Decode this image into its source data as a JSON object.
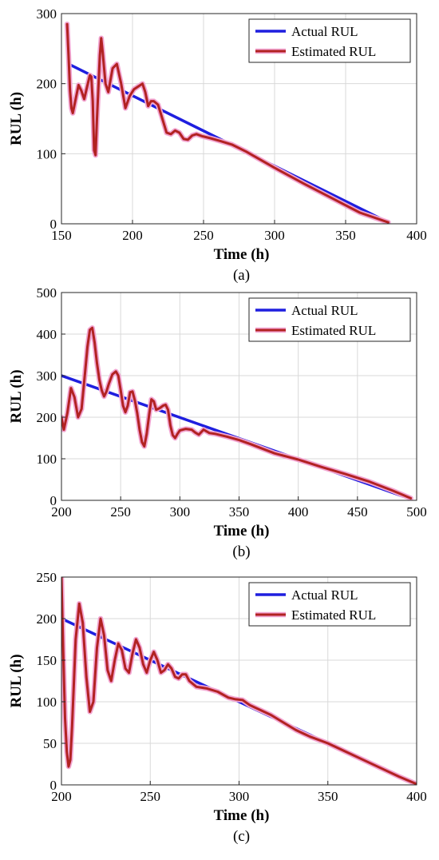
{
  "chart_data": [
    {
      "type": "line",
      "panel_label": "(a)",
      "xlabel": "Time (h)",
      "ylabel": "RUL (h)",
      "xlim": [
        150,
        400
      ],
      "ylim": [
        0,
        300
      ],
      "xticks": [
        150,
        200,
        250,
        300,
        350,
        400
      ],
      "yticks": [
        0,
        100,
        200,
        300
      ],
      "grid": true,
      "legend_position": "top-right",
      "series": [
        {
          "name": "Actual RUL",
          "color": "#1f1fdf",
          "x": [
            155,
            380
          ],
          "y": [
            228,
            2
          ]
        },
        {
          "name": "Estimated RUL",
          "color": "#b22222",
          "x": [
            154,
            155,
            156,
            157,
            158,
            160,
            162,
            164,
            166,
            168,
            170,
            171,
            172,
            173,
            174,
            175,
            177,
            178,
            179,
            181,
            183,
            186,
            189,
            192,
            195,
            198,
            201,
            204,
            207,
            209,
            211,
            213,
            215,
            218,
            221,
            224,
            227,
            230,
            233,
            236,
            239,
            242,
            245,
            249,
            255,
            262,
            270,
            280,
            300,
            320,
            340,
            360,
            380
          ],
          "y": [
            285,
            240,
            190,
            165,
            158,
            178,
            198,
            190,
            178,
            195,
            212,
            210,
            175,
            105,
            98,
            150,
            240,
            265,
            245,
            200,
            188,
            222,
            228,
            200,
            165,
            182,
            192,
            196,
            200,
            188,
            168,
            175,
            175,
            170,
            150,
            130,
            128,
            133,
            130,
            121,
            120,
            126,
            128,
            125,
            122,
            118,
            113,
            103,
            80,
            58,
            37,
            16,
            2
          ]
        }
      ]
    },
    {
      "type": "line",
      "panel_label": "(b)",
      "xlabel": "Time (h)",
      "ylabel": "RUL (h)",
      "xlim": [
        200,
        500
      ],
      "ylim": [
        0,
        500
      ],
      "xticks": [
        200,
        250,
        300,
        350,
        400,
        450,
        500
      ],
      "yticks": [
        0,
        100,
        200,
        300,
        400,
        500
      ],
      "grid": true,
      "legend_position": "top-right",
      "series": [
        {
          "name": "Actual RUL",
          "color": "#1f1fdf",
          "x": [
            200,
            495
          ],
          "y": [
            300,
            3
          ]
        },
        {
          "name": "Estimated RUL",
          "color": "#b22222",
          "x": [
            200,
            202,
            205,
            208,
            211,
            214,
            217,
            220,
            222,
            224,
            226,
            228,
            230,
            232,
            234,
            236,
            238,
            240,
            243,
            246,
            248,
            250,
            252,
            254,
            256,
            258,
            260,
            262,
            264,
            266,
            268,
            270,
            272,
            274,
            276,
            278,
            280,
            283,
            286,
            288,
            290,
            292,
            294,
            296,
            298,
            300,
            305,
            310,
            313,
            316,
            320,
            325,
            330,
            340,
            350,
            360,
            380,
            400,
            420,
            440,
            460,
            480,
            495
          ],
          "y": [
            200,
            170,
            210,
            270,
            248,
            200,
            220,
            310,
            370,
            410,
            415,
            380,
            330,
            290,
            265,
            250,
            262,
            280,
            303,
            310,
            300,
            265,
            228,
            212,
            228,
            260,
            262,
            240,
            210,
            170,
            140,
            130,
            160,
            205,
            243,
            238,
            218,
            222,
            228,
            230,
            218,
            180,
            157,
            150,
            160,
            168,
            172,
            170,
            163,
            158,
            170,
            162,
            160,
            153,
            145,
            135,
            113,
            98,
            80,
            63,
            45,
            23,
            5
          ]
        }
      ]
    },
    {
      "type": "line",
      "panel_label": "(c)",
      "xlabel": "Time (h)",
      "ylabel": "RUL (h)",
      "xlim": [
        200,
        400
      ],
      "ylim": [
        0,
        250
      ],
      "xticks": [
        200,
        250,
        300,
        350,
        400
      ],
      "yticks": [
        0,
        50,
        100,
        150,
        200,
        250
      ],
      "grid": true,
      "legend_position": "top-right",
      "series": [
        {
          "name": "Actual RUL",
          "color": "#1f1fdf",
          "x": [
            200,
            400
          ],
          "y": [
            200,
            0
          ]
        },
        {
          "name": "Estimated RUL",
          "color": "#b22222",
          "x": [
            200,
            201,
            202,
            203,
            204,
            205,
            206,
            208,
            210,
            212,
            214,
            216,
            218,
            220,
            222,
            224,
            226,
            228,
            230,
            232,
            234,
            236,
            238,
            240,
            242,
            244,
            246,
            248,
            250,
            252,
            254,
            256,
            258,
            260,
            262,
            264,
            266,
            268,
            270,
            272,
            276,
            282,
            288,
            294,
            298,
            302,
            306,
            312,
            318,
            325,
            332,
            340,
            350,
            360,
            370,
            380,
            390,
            400
          ],
          "y": [
            250,
            160,
            80,
            40,
            22,
            30,
            70,
            175,
            218,
            195,
            130,
            88,
            100,
            165,
            200,
            180,
            138,
            125,
            150,
            170,
            162,
            140,
            135,
            158,
            175,
            165,
            145,
            135,
            150,
            160,
            150,
            135,
            138,
            145,
            140,
            130,
            128,
            133,
            133,
            125,
            118,
            116,
            112,
            105,
            103,
            102,
            96,
            90,
            84,
            75,
            66,
            58,
            50,
            40,
            30,
            20,
            10,
            1
          ]
        }
      ]
    }
  ]
}
